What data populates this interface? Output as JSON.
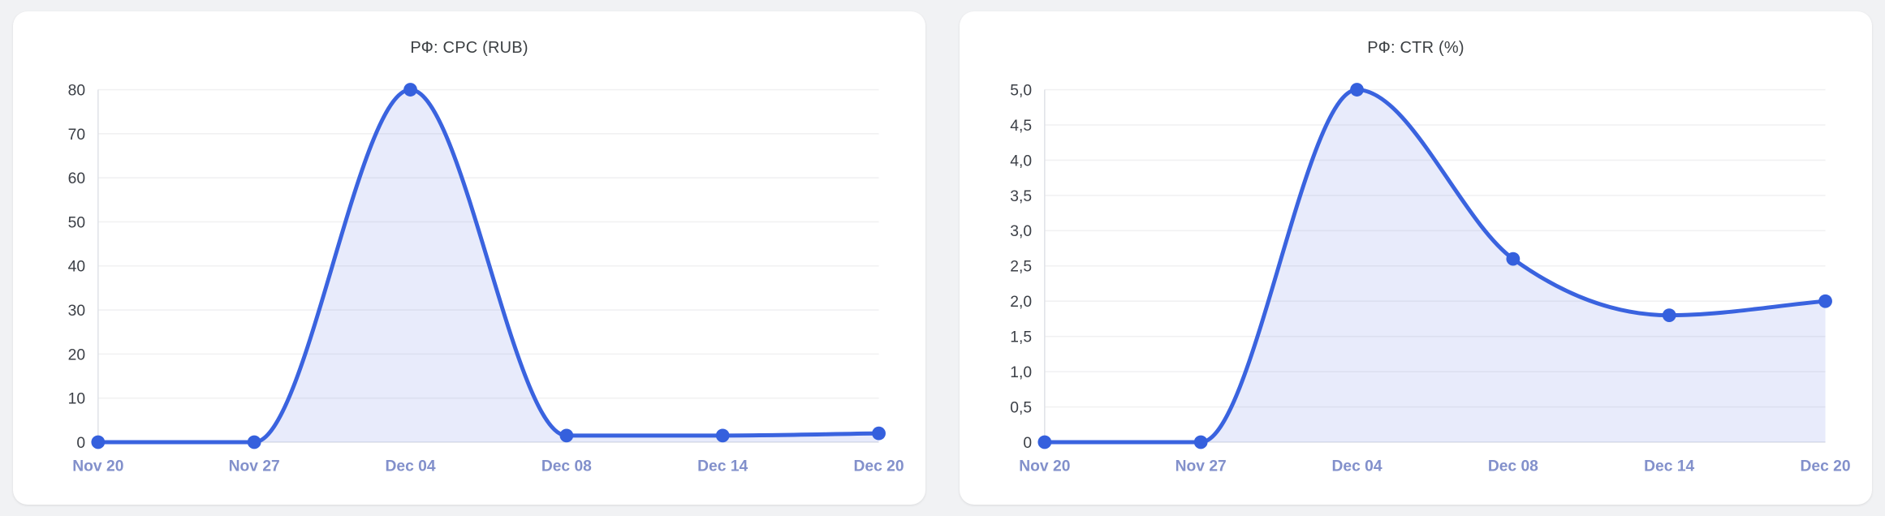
{
  "chart_data": [
    {
      "type": "area",
      "title": "РФ: CPC (RUB)",
      "xlabel": "",
      "ylabel": "",
      "categories": [
        "Nov 20",
        "Nov 27",
        "Dec 04",
        "Dec 08",
        "Dec 14",
        "Dec 20"
      ],
      "values": [
        0,
        0,
        80,
        1.5,
        1.5,
        2
      ],
      "ylim": [
        0,
        80
      ],
      "yticks": [
        0,
        10,
        20,
        30,
        40,
        50,
        60,
        70,
        80
      ],
      "ytick_labels": [
        "0",
        "10",
        "20",
        "30",
        "40",
        "50",
        "60",
        "70",
        "80"
      ],
      "grid": true,
      "legend": false
    },
    {
      "type": "area",
      "title": "РФ: CTR (%)",
      "xlabel": "",
      "ylabel": "",
      "categories": [
        "Nov 20",
        "Nov 27",
        "Dec 04",
        "Dec 08",
        "Dec 14",
        "Dec 20"
      ],
      "values": [
        0,
        0,
        5.0,
        2.6,
        1.8,
        2.0
      ],
      "ylim": [
        0,
        5
      ],
      "yticks": [
        0,
        0.5,
        1.0,
        1.5,
        2.0,
        2.5,
        3.0,
        3.5,
        4.0,
        4.5,
        5.0
      ],
      "ytick_labels": [
        "0",
        "0,5",
        "1,0",
        "1,5",
        "2,0",
        "2,5",
        "3,0",
        "3,5",
        "4,0",
        "4,5",
        "5,0"
      ],
      "grid": true,
      "legend": false
    }
  ],
  "style": {
    "line_color": "#3a63df",
    "point_color": "#3560dd",
    "area_fill": "rgba(90, 115, 224, 0.14)",
    "grid_color": "#f1f1f2",
    "axis_color": "#e1e3e8",
    "x_label_color": "#8290cb",
    "y_label_color": "#3b3f46",
    "title_color": "#3c4043",
    "card_background": "#ffffff",
    "page_background": "#f1f2f4"
  }
}
